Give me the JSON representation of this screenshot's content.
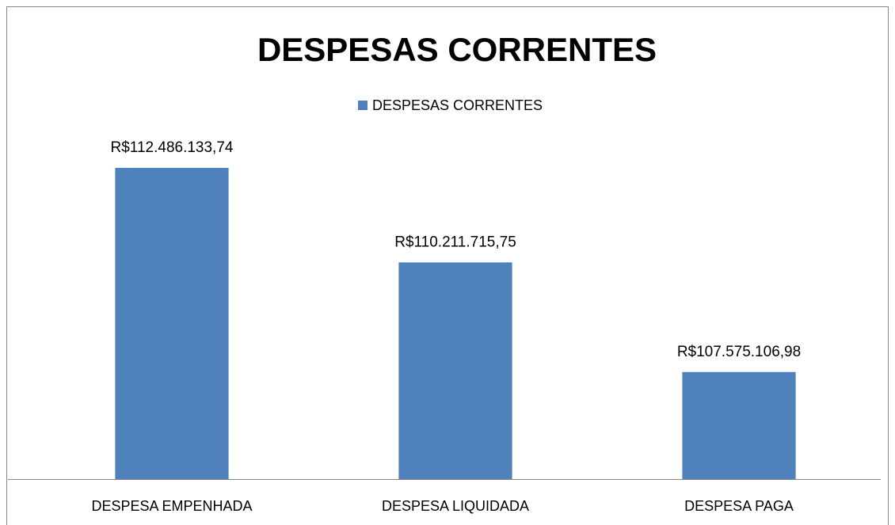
{
  "chart_data": {
    "type": "bar",
    "title": "DESPESAS CORRENTES",
    "categories": [
      "DESPESA EMPENHADA",
      "DESPESA LIQUIDADA",
      "DESPESA PAGA"
    ],
    "series": [
      {
        "name": "DESPESAS CORRENTES",
        "color": "#4f81bd",
        "values": [
          112486133.74,
          110211715.75,
          107575106.98
        ],
        "value_labels": [
          "R$112.486.133,74",
          "R$110.211.715,75",
          "R$107.575.106,98"
        ]
      }
    ],
    "ylim": [
      105000000,
      113000000
    ],
    "legend": "top"
  }
}
